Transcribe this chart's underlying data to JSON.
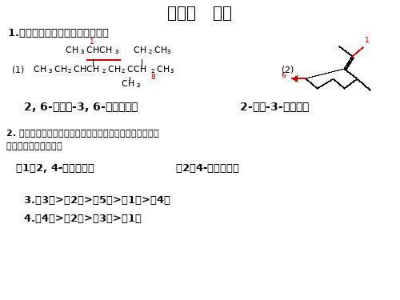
{
  "background_color": "#ffffff",
  "text_color": "#000000",
  "red_color": "#cc0000"
}
